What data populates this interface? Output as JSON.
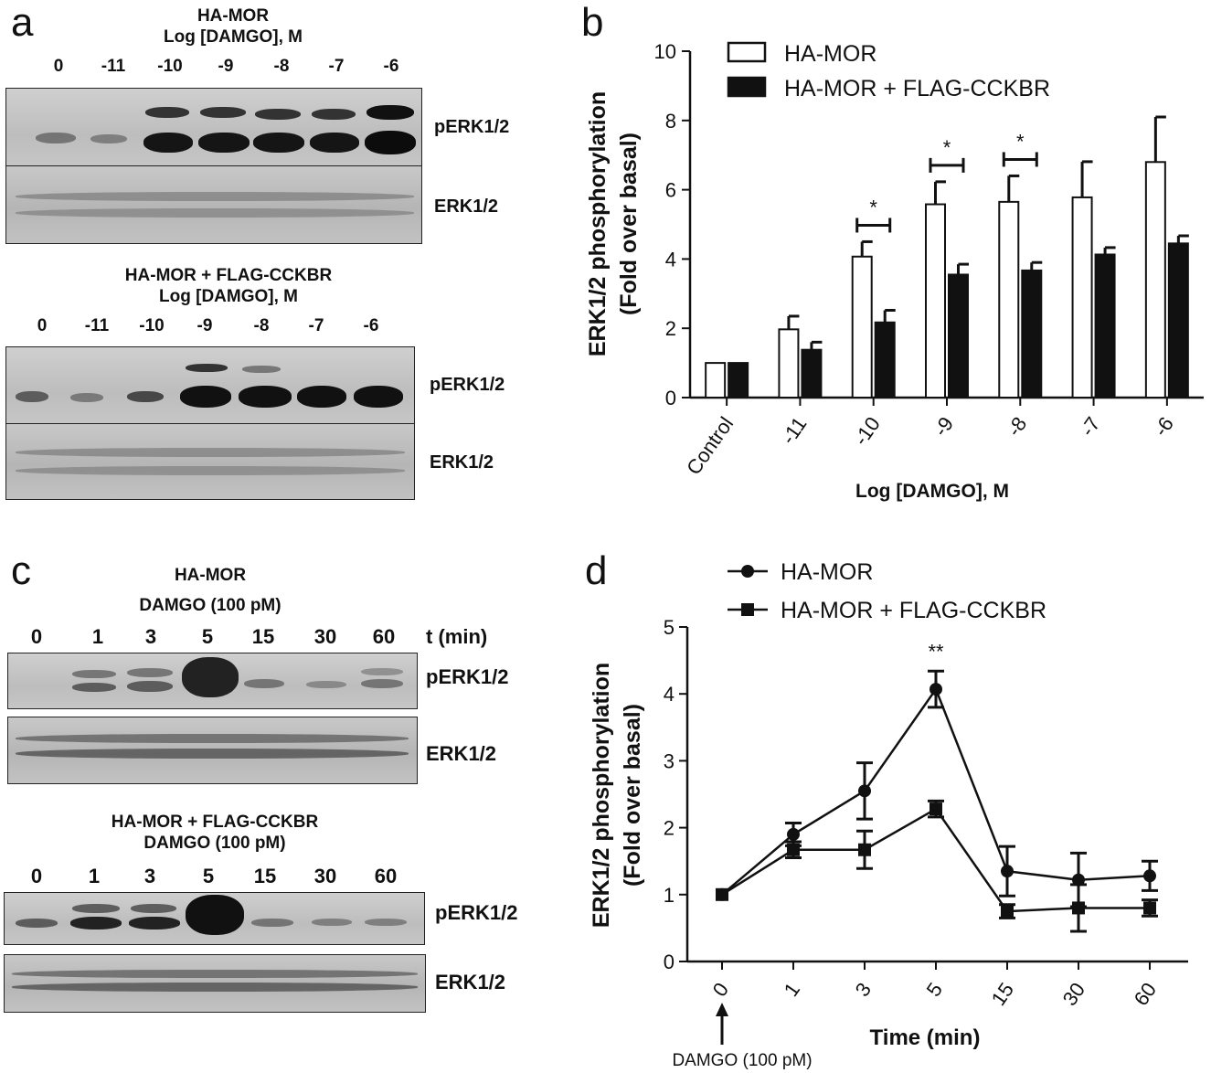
{
  "panels": {
    "a": {
      "letter": "a",
      "blot1": {
        "title_line1": "HA-MOR",
        "title_line2": "Log [DAMGO], M",
        "lanes": [
          "0",
          "-11",
          "-10",
          "-9",
          "-8",
          "-7",
          "-6"
        ],
        "band_top": "pERK1/2",
        "band_bottom": "ERK1/2"
      },
      "blot2": {
        "title_line1": "HA-MOR + FLAG-CCKBR",
        "title_line2": "Log [DAMGO], M",
        "lanes": [
          "0",
          "-11",
          "-10",
          "-9",
          "-8",
          "-7",
          "-6"
        ],
        "band_top": "pERK1/2",
        "band_bottom": "ERK1/2"
      }
    },
    "b": {
      "letter": "b"
    },
    "c": {
      "letter": "c",
      "blot1": {
        "title_line1": "HA-MOR",
        "title_line2": "DAMGO (100 pM)",
        "lanes": [
          "0",
          "1",
          "3",
          "5",
          "15",
          "30",
          "60"
        ],
        "time_label": "t (min)",
        "band_top": "pERK1/2",
        "band_bottom": "ERK1/2"
      },
      "blot2": {
        "title_line1": "HA-MOR + FLAG-CCKBR",
        "title_line2": "DAMGO (100 pM)",
        "lanes": [
          "0",
          "1",
          "3",
          "5",
          "15",
          "30",
          "60"
        ],
        "time_label": "t (min)",
        "band_top": "pERK1/2",
        "band_bottom": "ERK1/2"
      }
    },
    "d": {
      "letter": "d"
    }
  },
  "chart_data": [
    {
      "panel": "b",
      "type": "bar",
      "categories": [
        "Control",
        "-11",
        "-10",
        "-9",
        "-8",
        "-7",
        "-6"
      ],
      "series": [
        {
          "name": "HA-MOR",
          "fill": "#ffffff",
          "values": [
            1.0,
            1.97,
            4.07,
            5.58,
            5.65,
            5.78,
            6.8
          ],
          "errors": [
            0.0,
            0.38,
            0.43,
            0.65,
            0.75,
            1.03,
            1.3
          ]
        },
        {
          "name": "HA-MOR + FLAG-CCKBR",
          "fill": "#111111",
          "values": [
            1.0,
            1.38,
            2.17,
            3.55,
            3.67,
            4.13,
            4.45
          ],
          "errors": [
            0.0,
            0.22,
            0.35,
            0.3,
            0.23,
            0.2,
            0.22
          ]
        }
      ],
      "title": "",
      "xlabel": "Log [DAMGO], M",
      "ylabel_line1": "ERK1/2 phosphorylation",
      "ylabel_line2": "(Fold over basal)",
      "ylim": [
        0,
        10
      ],
      "yticks": [
        "0",
        "2",
        "4",
        "6",
        "8",
        "10"
      ],
      "significance": [
        {
          "category": "-10",
          "label": "*"
        },
        {
          "category": "-9",
          "label": "*"
        },
        {
          "category": "-8",
          "label": "*"
        }
      ],
      "legend_position": "top-left",
      "grid": false
    },
    {
      "panel": "d",
      "type": "line",
      "categories": [
        "0",
        "1",
        "3",
        "5",
        "15",
        "30",
        "60"
      ],
      "series": [
        {
          "name": "HA-MOR",
          "marker": "circle",
          "values": [
            1.0,
            1.9,
            2.55,
            4.07,
            1.35,
            1.22,
            1.28
          ],
          "errors": [
            0.0,
            0.17,
            0.42,
            0.27,
            0.37,
            0.4,
            0.22
          ]
        },
        {
          "name": "HA-MOR + FLAG-CCKBR",
          "marker": "square",
          "values": [
            1.0,
            1.67,
            1.67,
            2.28,
            0.75,
            0.8,
            0.8
          ],
          "errors": [
            0.0,
            0.12,
            0.28,
            0.12,
            0.1,
            0.35,
            0.12
          ]
        }
      ],
      "xlabel": "Time (min)",
      "ylabel_line1": "ERK1/2 phosphorylation",
      "ylabel_line2": "(Fold over basal)",
      "ylim": [
        0,
        5
      ],
      "yticks": [
        "0",
        "1",
        "2",
        "3",
        "4",
        "5"
      ],
      "significance": [
        {
          "category": "5",
          "label": "**"
        }
      ],
      "annotation": "DAMGO (100 pM)",
      "legend_position": "top",
      "grid": false
    }
  ]
}
